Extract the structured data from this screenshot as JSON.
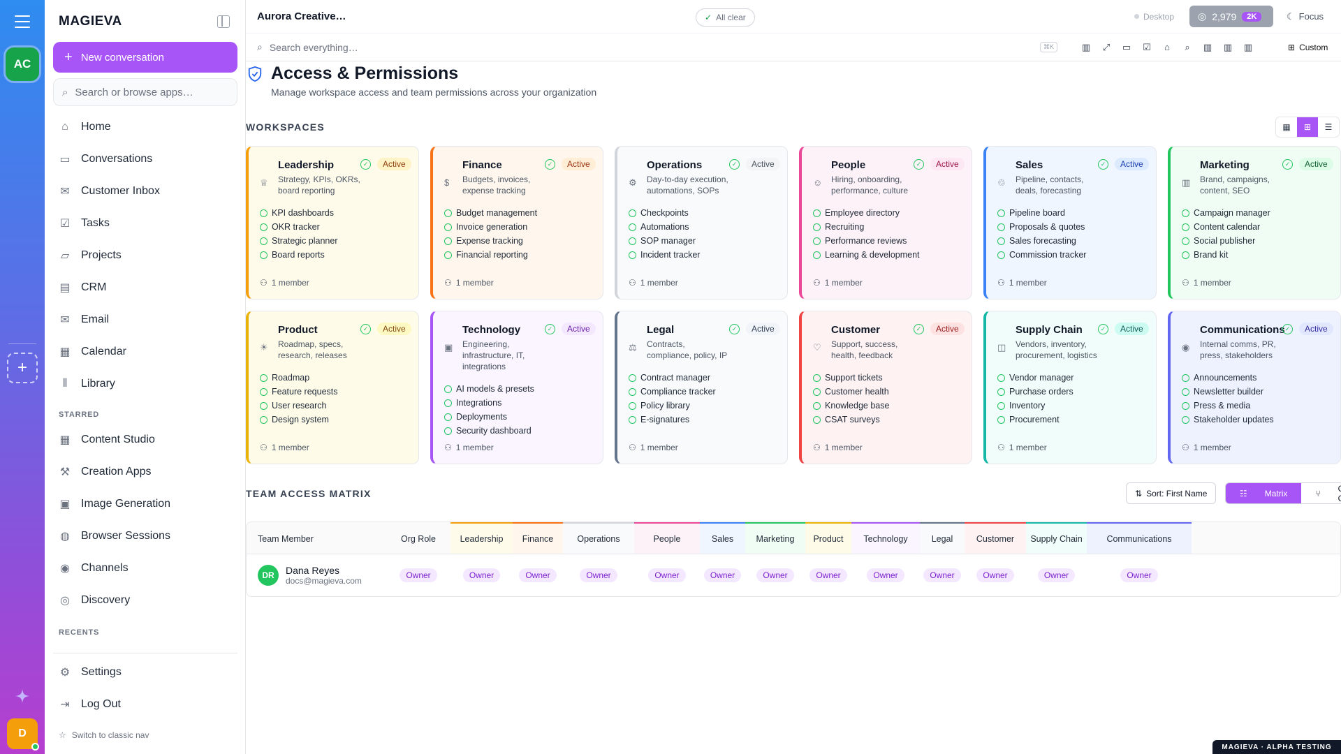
{
  "rail": {
    "workspace_initials": "AC",
    "user_initial": "D"
  },
  "sidebar": {
    "brand": "MAGIEVA",
    "new_conversation": "New conversation",
    "search_placeholder": "Search or browse apps…",
    "items": [
      {
        "label": "Home",
        "icon": "home-icon"
      },
      {
        "label": "Conversations",
        "icon": "chat-icon"
      },
      {
        "label": "Customer Inbox",
        "icon": "inbox-icon"
      },
      {
        "label": "Tasks",
        "icon": "checkbox-icon"
      },
      {
        "label": "Projects",
        "icon": "folder-icon"
      },
      {
        "label": "CRM",
        "icon": "building-icon"
      },
      {
        "label": "Email",
        "icon": "mail-icon"
      },
      {
        "label": "Calendar",
        "icon": "calendar-icon"
      },
      {
        "label": "Library",
        "icon": "library-icon"
      }
    ],
    "starred_heading": "STARRED",
    "starred": [
      {
        "label": "Content Studio",
        "icon": "film-icon"
      },
      {
        "label": "Creation Apps",
        "icon": "apps-icon"
      },
      {
        "label": "Image Generation",
        "icon": "image-icon"
      },
      {
        "label": "Browser Sessions",
        "icon": "globe-icon"
      },
      {
        "label": "Channels",
        "icon": "broadcast-icon"
      },
      {
        "label": "Discovery",
        "icon": "compass-icon"
      }
    ],
    "recents_heading": "RECENTS",
    "settings": "Settings",
    "logout": "Log Out",
    "switch_nav": "Switch to classic nav"
  },
  "topbar": {
    "title": "Aurora Creative…",
    "status": "All clear",
    "device": "Desktop",
    "credits": "2,979",
    "credits_badge": "2K",
    "focus": "Focus"
  },
  "toolbar": {
    "search_placeholder": "Search everything…",
    "shortcut": "⌘K",
    "custom": "Custom"
  },
  "page": {
    "title": "Access & Permissions",
    "subtitle": "Manage workspace access and team permissions across your organization",
    "workspaces_heading": "WORKSPACES",
    "matrix_heading": "TEAM ACCESS MATRIX"
  },
  "workspaces": [
    {
      "name": "Leadership",
      "desc": "Strategy, KPIs, OKRs, board reporting",
      "status": "Active",
      "color": "#f59e0b",
      "bg": "#fffbeb",
      "badge_bg": "#fef3c7",
      "badge_fg": "#92400e",
      "icon": "crown-icon",
      "glyph": "♕",
      "features": [
        "KPI dashboards",
        "OKR tracker",
        "Strategic planner",
        "Board reports"
      ],
      "members": "1 member"
    },
    {
      "name": "Finance",
      "desc": "Budgets, invoices, expense tracking",
      "status": "Active",
      "color": "#f97316",
      "bg": "#fff7ed",
      "badge_bg": "#ffedd5",
      "badge_fg": "#9a3412",
      "icon": "dollar-icon",
      "glyph": "$",
      "features": [
        "Budget management",
        "Invoice generation",
        "Expense tracking",
        "Financial reporting"
      ],
      "members": "1 member"
    },
    {
      "name": "Operations",
      "desc": "Day-to-day execution, automations, SOPs",
      "status": "Active",
      "color": "#d1d5db",
      "bg": "#f9fafb",
      "badge_bg": "#f3f4f6",
      "badge_fg": "#4b5563",
      "icon": "cog-icon",
      "glyph": "⚙",
      "features": [
        "Checkpoints",
        "Automations",
        "SOP manager",
        "Incident tracker"
      ],
      "members": "1 member"
    },
    {
      "name": "People",
      "desc": "Hiring, onboarding, performance, culture",
      "status": "Active",
      "color": "#ec4899",
      "bg": "#fdf2f8",
      "badge_bg": "#fce7f3",
      "badge_fg": "#9d174d",
      "icon": "users-icon",
      "glyph": "☺",
      "features": [
        "Employee directory",
        "Recruiting",
        "Performance reviews",
        "Learning & development"
      ],
      "members": "1 member"
    },
    {
      "name": "Sales",
      "desc": "Pipeline, contacts, deals, forecasting",
      "status": "Active",
      "color": "#3b82f6",
      "bg": "#eff6ff",
      "badge_bg": "#dbeafe",
      "badge_fg": "#1e40af",
      "icon": "handshake-icon",
      "glyph": "♲",
      "features": [
        "Pipeline board",
        "Proposals & quotes",
        "Sales forecasting",
        "Commission tracker"
      ],
      "members": "1 member"
    },
    {
      "name": "Marketing",
      "desc": "Brand, campaigns, content, SEO",
      "status": "Active",
      "color": "#22c55e",
      "bg": "#f0fdf4",
      "badge_bg": "#dcfce7",
      "badge_fg": "#166534",
      "icon": "bar-chart-icon",
      "glyph": "▥",
      "features": [
        "Campaign manager",
        "Content calendar",
        "Social publisher",
        "Brand kit"
      ],
      "members": "1 member"
    },
    {
      "name": "Product",
      "desc": "Roadmap, specs, research, releases",
      "status": "Active",
      "color": "#eab308",
      "bg": "#fefce8",
      "badge_bg": "#fef9c3",
      "badge_fg": "#854d0e",
      "icon": "lightbulb-icon",
      "glyph": "☀",
      "features": [
        "Roadmap",
        "Feature requests",
        "User research",
        "Design system"
      ],
      "members": "1 member"
    },
    {
      "name": "Technology",
      "desc": "Engineering, infrastructure, IT, integrations",
      "status": "Active",
      "color": "#a855f7",
      "bg": "#faf5ff",
      "badge_bg": "#f3e8ff",
      "badge_fg": "#6b21a8",
      "icon": "cpu-icon",
      "glyph": "▣",
      "features": [
        "AI models & presets",
        "Integrations",
        "Deployments",
        "Security dashboard"
      ],
      "members": "1 member"
    },
    {
      "name": "Legal",
      "desc": "Contracts, compliance, policy, IP",
      "status": "Active",
      "color": "#64748b",
      "bg": "#f8fafc",
      "badge_bg": "#f1f5f9",
      "badge_fg": "#334155",
      "icon": "scale-icon",
      "glyph": "⚖",
      "features": [
        "Contract manager",
        "Compliance tracker",
        "Policy library",
        "E-signatures"
      ],
      "members": "1 member"
    },
    {
      "name": "Customer",
      "desc": "Support, success, health, feedback",
      "status": "Active",
      "color": "#ef4444",
      "bg": "#fef2f2",
      "badge_bg": "#fee2e2",
      "badge_fg": "#991b1b",
      "icon": "heart-icon",
      "glyph": "♡",
      "features": [
        "Support tickets",
        "Customer health",
        "Knowledge base",
        "CSAT surveys"
      ],
      "members": "1 member"
    },
    {
      "name": "Supply Chain",
      "desc": "Vendors, inventory, procurement, logistics",
      "status": "Active",
      "color": "#14b8a6",
      "bg": "#f0fdfa",
      "badge_bg": "#ccfbf1",
      "badge_fg": "#115e59",
      "icon": "box-icon",
      "glyph": "◫",
      "features": [
        "Vendor manager",
        "Purchase orders",
        "Inventory",
        "Procurement"
      ],
      "members": "1 member"
    },
    {
      "name": "Communications",
      "desc": "Internal comms, PR, press, stakeholders",
      "status": "Active",
      "color": "#6366f1",
      "bg": "#eef2ff",
      "badge_bg": "#e0e7ff",
      "badge_fg": "#3730a3",
      "icon": "radio-icon",
      "glyph": "◉",
      "features": [
        "Announcements",
        "Newsletter builder",
        "Press & media",
        "Stakeholder updates"
      ],
      "members": "1 member"
    }
  ],
  "matrix": {
    "sort_label": "Sort: First Name",
    "view_matrix": "Matrix",
    "view_org": "Org Chart",
    "col_member": "Team Member",
    "col_role": "Org Role",
    "columns": [
      "Leadership",
      "Finance",
      "Operations",
      "People",
      "Sales",
      "Marketing",
      "Product",
      "Technology",
      "Legal",
      "Customer",
      "Supply Chain",
      "Communications"
    ],
    "rows": [
      {
        "initials": "DR",
        "name": "Dana Reyes",
        "email": "docs@magieva.com",
        "org_role": "Owner",
        "access": [
          "Owner",
          "Owner",
          "Owner",
          "Owner",
          "Owner",
          "Owner",
          "Owner",
          "Owner",
          "Owner",
          "Owner",
          "Owner",
          "Owner"
        ]
      }
    ]
  },
  "footer_badge": "MAGIEVA · ALPHA TESTING"
}
